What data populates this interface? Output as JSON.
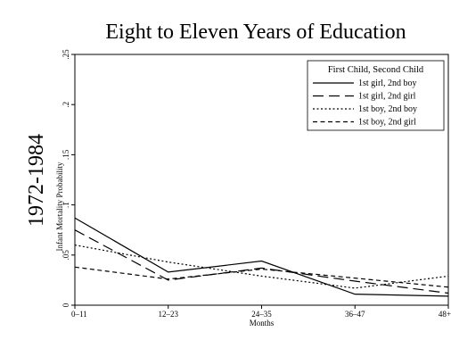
{
  "chart_data": {
    "type": "line",
    "title": "Eight to Eleven Years of Education",
    "row_label": "1972-1984",
    "xlabel": "Months",
    "ylabel": "Infant Mortality Probability",
    "categories": [
      "0–11",
      "12–23",
      "24–35",
      "36–47",
      "48+"
    ],
    "y_ticks": [
      0,
      0.05,
      0.1,
      0.15,
      0.2,
      0.25
    ],
    "y_tick_labels": [
      "0",
      ".05",
      ".1",
      ".15",
      ".2",
      ".25"
    ],
    "ylim": [
      0,
      0.25
    ],
    "grid": false,
    "legend": {
      "title": "First Child, Second Child",
      "position": "top-right"
    },
    "series": [
      {
        "name": "1st girl, 2nd boy",
        "dash": "solid",
        "values": [
          0.087,
          0.033,
          0.044,
          0.011,
          0.009
        ]
      },
      {
        "name": "1st girl, 2nd girl",
        "dash": "long-dash",
        "values": [
          0.075,
          0.025,
          0.037,
          0.024,
          0.012
        ]
      },
      {
        "name": "1st boy, 2nd boy",
        "dash": "dotted",
        "values": [
          0.06,
          0.043,
          0.029,
          0.017,
          0.029
        ]
      },
      {
        "name": "1st boy, 2nd girl",
        "dash": "short-dash",
        "values": [
          0.038,
          0.026,
          0.036,
          0.027,
          0.018
        ]
      }
    ]
  }
}
